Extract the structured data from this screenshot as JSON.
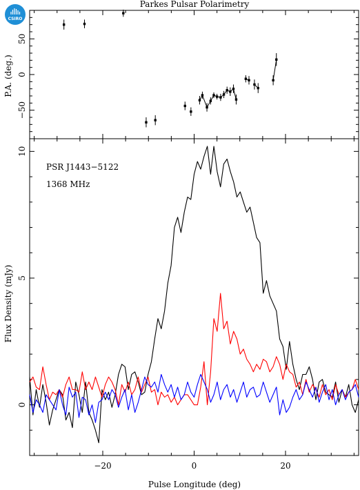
{
  "logo": {
    "text": "CSIRO",
    "color": "#1f8fd6"
  },
  "colors": {
    "total": "#000000",
    "linear": "#ff0000",
    "circular": "#0000ff"
  },
  "chart_data": [
    {
      "type": "scatter",
      "title": "Parkes Pulsar Polarimetry",
      "ylabel": "P.A. (deg.)",
      "xlim": [
        -36,
        36
      ],
      "ylim": [
        -90,
        90
      ],
      "yticks": [
        -50,
        0,
        50
      ],
      "points": [
        {
          "x": -28.5,
          "y": 70,
          "err": 7
        },
        {
          "x": -24,
          "y": 71,
          "err": 6
        },
        {
          "x": -15.5,
          "y": 86,
          "err": 5
        },
        {
          "x": -10.5,
          "y": -67,
          "err": 7
        },
        {
          "x": -8.5,
          "y": -64,
          "err": 7
        },
        {
          "x": -2,
          "y": -44,
          "err": 6
        },
        {
          "x": -0.7,
          "y": -52,
          "err": 6
        },
        {
          "x": 1.2,
          "y": -36,
          "err": 6
        },
        {
          "x": 1.8,
          "y": -29,
          "err": 5
        },
        {
          "x": 2.8,
          "y": -46,
          "err": 6
        },
        {
          "x": 3.6,
          "y": -37,
          "err": 5
        },
        {
          "x": 4.3,
          "y": -29,
          "err": 4
        },
        {
          "x": 5.0,
          "y": -31,
          "err": 4
        },
        {
          "x": 5.8,
          "y": -32,
          "err": 5
        },
        {
          "x": 6.5,
          "y": -28,
          "err": 5
        },
        {
          "x": 7.2,
          "y": -22,
          "err": 5
        },
        {
          "x": 7.9,
          "y": -24,
          "err": 6
        },
        {
          "x": 8.6,
          "y": -20,
          "err": 6
        },
        {
          "x": 9.2,
          "y": -35,
          "err": 7
        },
        {
          "x": 11.3,
          "y": -6,
          "err": 5
        },
        {
          "x": 12.0,
          "y": -8,
          "err": 6
        },
        {
          "x": 13.2,
          "y": -14,
          "err": 7
        },
        {
          "x": 14.0,
          "y": -19,
          "err": 7
        },
        {
          "x": 17.3,
          "y": -8,
          "err": 7
        },
        {
          "x": 18.0,
          "y": 21,
          "err": 9
        }
      ],
      "line_segments": [
        [
          [
            1.2,
            -36
          ],
          [
            1.8,
            -29
          ],
          [
            2.8,
            -46
          ],
          [
            3.6,
            -37
          ],
          [
            4.3,
            -29
          ],
          [
            5.0,
            -31
          ],
          [
            5.8,
            -32
          ],
          [
            6.5,
            -28
          ],
          [
            7.2,
            -22
          ],
          [
            7.9,
            -24
          ],
          [
            8.6,
            -20
          ],
          [
            9.2,
            -35
          ]
        ],
        [
          [
            11.3,
            -6
          ],
          [
            12.0,
            -8
          ]
        ],
        [
          [
            13.2,
            -14
          ],
          [
            14.0,
            -19
          ]
        ],
        [
          [
            17.3,
            -8
          ],
          [
            18.0,
            21
          ]
        ]
      ]
    },
    {
      "type": "line",
      "xlabel": "Pulse Longitude (deg)",
      "ylabel": "Flux Density (mJy)",
      "annotations": [
        "PSR J1443−5122",
        "1368 MHz"
      ],
      "xlim": [
        -36,
        36
      ],
      "ylim": [
        -2,
        10.5
      ],
      "xticks": [
        -20,
        0,
        20
      ],
      "yticks": [
        0,
        5,
        10
      ],
      "x_start": -36,
      "x_step": 0.72,
      "series": [
        {
          "color": "#000000",
          "values": [
            1.1,
            -0.4,
            0.6,
            -0.1,
            0.8,
            0.1,
            -0.8,
            -0.2,
            0.2,
            0.6,
            0.4,
            -0.6,
            -0.3,
            -0.9,
            0.9,
            0.4,
            -0.3,
            0.9,
            -0.3,
            -0.6,
            -1.0,
            -1.5,
            0.6,
            0.2,
            0.5,
            -0.1,
            0.4,
            1.2,
            1.6,
            1.5,
            0.6,
            1.2,
            1.3,
            0.9,
            0.4,
            0.5,
            1.2,
            1.7,
            2.6,
            3.4,
            3.0,
            3.7,
            4.8,
            5.5,
            7.0,
            7.4,
            6.8,
            7.6,
            8.2,
            8.1,
            9.1,
            9.6,
            9.3,
            9.8,
            10.2,
            9.1,
            10.2,
            9.2,
            8.6,
            9.5,
            9.7,
            9.2,
            8.8,
            8.2,
            8.4,
            8.0,
            7.6,
            7.8,
            7.2,
            6.6,
            6.4,
            4.4,
            4.9,
            4.3,
            4.0,
            3.7,
            2.6,
            2.3,
            1.4,
            2.5,
            1.6,
            1.0,
            0.6,
            1.2,
            1.2,
            1.5,
            1.0,
            0.2,
            0.9,
            1.0,
            0.5,
            0.4,
            0.3,
            0.9,
            0.1,
            0.6,
            0.3,
            0.8,
            0.0,
            -0.3,
            0.2
          ]
        },
        {
          "color": "#ff0000",
          "values": [
            0.9,
            1.1,
            0.7,
            0.6,
            1.5,
            0.8,
            0.2,
            0.5,
            0.4,
            0.6,
            0.3,
            0.8,
            1.1,
            0.6,
            0.6,
            0.5,
            1.3,
            0.6,
            0.9,
            0.6,
            1.1,
            0.7,
            0.3,
            0.8,
            1.1,
            0.9,
            0.6,
            0.0,
            0.8,
            0.5,
            0.9,
            0.4,
            0.6,
            1.1,
            0.5,
            0.8,
            1.1,
            0.5,
            0.6,
            0.0,
            0.5,
            0.3,
            0.4,
            0.1,
            0.3,
            0.0,
            0.2,
            0.4,
            0.4,
            0.2,
            0.0,
            0.0,
            0.7,
            1.7,
            0.0,
            1.3,
            3.4,
            2.9,
            4.4,
            3.0,
            3.3,
            2.4,
            2.9,
            2.6,
            2.0,
            2.2,
            1.8,
            1.6,
            1.3,
            1.6,
            1.4,
            1.8,
            1.7,
            1.3,
            1.5,
            1.9,
            1.6,
            1.0,
            1.6,
            1.3,
            1.2,
            0.7,
            0.9,
            0.4,
            1.0,
            0.5,
            0.8,
            0.6,
            0.3,
            0.8,
            0.4,
            0.6,
            0.2,
            0.8,
            0.4,
            0.6,
            0.3,
            0.5,
            0.6,
            1.0,
            0.6
          ]
        },
        {
          "color": "#0000ff",
          "values": [
            0.4,
            -0.3,
            0.2,
            0.0,
            -0.3,
            0.4,
            0.2,
            0.0,
            -0.2,
            0.6,
            0.0,
            -0.4,
            0.7,
            0.3,
            0.5,
            -0.5,
            0.3,
            0.2,
            -0.4,
            0.0,
            -0.7,
            0.1,
            0.2,
            0.5,
            0.2,
            0.6,
            0.4,
            -0.1,
            0.3,
            0.6,
            -0.2,
            0.4,
            -0.3,
            0.1,
            0.6,
            1.1,
            0.8,
            0.7,
            0.9,
            0.5,
            1.2,
            0.8,
            0.5,
            0.8,
            0.3,
            0.7,
            0.2,
            0.4,
            0.9,
            0.5,
            0.3,
            0.8,
            1.2,
            0.9,
            0.6,
            0.1,
            0.4,
            0.9,
            0.2,
            0.6,
            0.8,
            0.3,
            0.6,
            0.1,
            0.5,
            0.9,
            0.3,
            0.6,
            0.7,
            0.3,
            0.4,
            0.9,
            0.5,
            0.1,
            0.4,
            0.7,
            -0.4,
            0.2,
            -0.3,
            -0.1,
            0.3,
            0.6,
            0.2,
            0.4,
            0.9,
            0.6,
            0.3,
            0.7,
            0.1,
            0.5,
            0.8,
            0.2,
            0.6,
            0.0,
            0.4,
            0.6,
            0.2,
            0.5,
            0.6,
            0.8,
            0.3
          ]
        }
      ]
    }
  ]
}
